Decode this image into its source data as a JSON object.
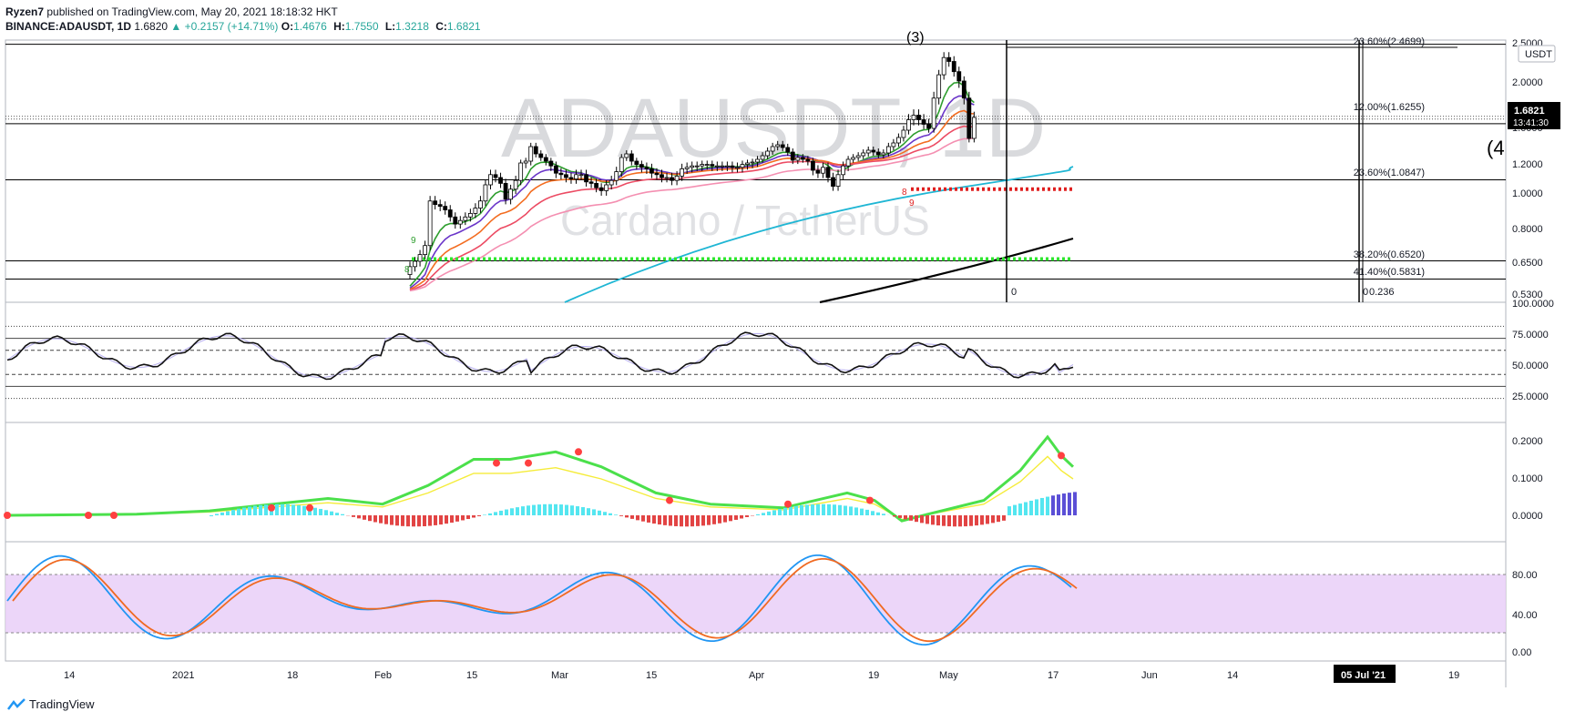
{
  "header": {
    "publisher": "Ryzen7",
    "published_text": "published on TradingView.com, May 20, 2021 18:18:32 HKT",
    "symbol": "BINANCE:ADAUSDT, 1D",
    "last": "1.6820",
    "change": "+0.2157 (+14.71%)",
    "o_label": "O:",
    "o_val": "1.4676",
    "h_label": "H:",
    "h_val": "1.7550",
    "l_label": "L:",
    "l_val": "1.3218",
    "c_label": "C:",
    "c_val": "1.6821"
  },
  "watermark": {
    "big": "ADAUSDT, 1D",
    "small": "Cardano / TetherUS"
  },
  "price_axis": {
    "currency": "USDT",
    "current_price": "1.6821",
    "countdown": "13:41:30",
    "ticks": [
      "2.5000",
      "2.0000",
      "1.6000",
      "1.2000",
      "1.0000",
      "0.8000",
      "0.6500",
      "0.5300"
    ]
  },
  "fib_labels": [
    "23.60%(2.4699)",
    "12.00%(1.6255)",
    "23.60%(1.0847)",
    "38.20%(0.6520)",
    "41.40%(0.5831)"
  ],
  "misc_labels": {
    "zero": "0",
    "zero_b": "0",
    "ratio": "0.236",
    "paren_top": "(3)",
    "paren_right": "(4",
    "td9_green": "9",
    "td8_green": "8",
    "td8_red": "8",
    "td9_red": "9"
  },
  "rsi_axis": [
    "100.0000",
    "75.0000",
    "50.0000",
    "25.0000"
  ],
  "macd_axis": [
    "0.2000",
    "0.1000",
    "0.0000"
  ],
  "stoch_axis": [
    "80.00",
    "40.00",
    "0.00"
  ],
  "time_axis": [
    "14",
    "2021",
    "18",
    "Feb",
    "15",
    "Mar",
    "15",
    "Apr",
    "19",
    "May",
    "17",
    "Jun",
    "14",
    "19"
  ],
  "time_cursor_label": "05 Jul '21",
  "footer": {
    "brand": "TradingView"
  },
  "colors": {
    "up": "#ffffff",
    "down": "#000000",
    "ema8": "#2e9e2e",
    "ema13": "#6a35c9",
    "ema21": "#f36d21",
    "ema34": "#ec4b63",
    "ema55": "#f48fb1",
    "ema100": "#1fb6d4",
    "ema200": "#000000",
    "support_green": "#2ee62e",
    "support_red": "#e02020",
    "stoch_band": "#e9cff8",
    "stoch_k": "#2196f3",
    "stoch_d": "#f06a22"
  },
  "chart_data": {
    "type": "candlestick",
    "panes": [
      "price",
      "rsi",
      "macd",
      "stochastic"
    ],
    "price_ylim": [
      0.5,
      2.5
    ],
    "close_series": [
      0.63,
      0.65,
      0.68,
      0.72,
      0.95,
      0.93,
      0.92,
      0.9,
      0.86,
      0.82,
      0.84,
      0.86,
      0.88,
      0.91,
      0.95,
      1.05,
      1.12,
      1.1,
      1.06,
      0.96,
      1.02,
      1.08,
      1.2,
      1.22,
      1.38,
      1.3,
      1.26,
      1.22,
      1.18,
      1.13,
      1.12,
      1.1,
      1.09,
      1.12,
      1.12,
      1.07,
      1.06,
      1.03,
      1.01,
      1.05,
      1.08,
      1.14,
      1.26,
      1.3,
      1.22,
      1.19,
      1.17,
      1.16,
      1.13,
      1.12,
      1.1,
      1.1,
      1.08,
      1.11,
      1.16,
      1.17,
      1.18,
      1.18,
      1.19,
      1.19,
      1.18,
      1.18,
      1.18,
      1.18,
      1.17,
      1.17,
      1.19,
      1.2,
      1.21,
      1.24,
      1.28,
      1.33,
      1.38,
      1.4,
      1.37,
      1.32,
      1.23,
      1.26,
      1.24,
      1.22,
      1.15,
      1.13,
      1.17,
      1.1,
      1.04,
      1.12,
      1.18,
      1.24,
      1.26,
      1.28,
      1.31,
      1.34,
      1.32,
      1.29,
      1.31,
      1.38,
      1.42,
      1.48,
      1.56,
      1.66,
      1.7,
      1.66,
      1.62,
      1.58,
      1.85,
      2.08,
      2.3,
      2.25,
      2.12,
      2.0,
      1.85,
      1.47,
      1.68
    ],
    "rsi_ylim": [
      0,
      100
    ],
    "macd_ylim": [
      -0.05,
      0.25
    ],
    "stoch_ylim": [
      0,
      100
    ],
    "fib_levels": [
      2.4699,
      1.6255,
      1.0847,
      0.652,
      0.5831
    ],
    "support_levels": [
      {
        "value": 0.66,
        "color": "green"
      },
      {
        "value": 1.02,
        "color": "red"
      }
    ]
  }
}
